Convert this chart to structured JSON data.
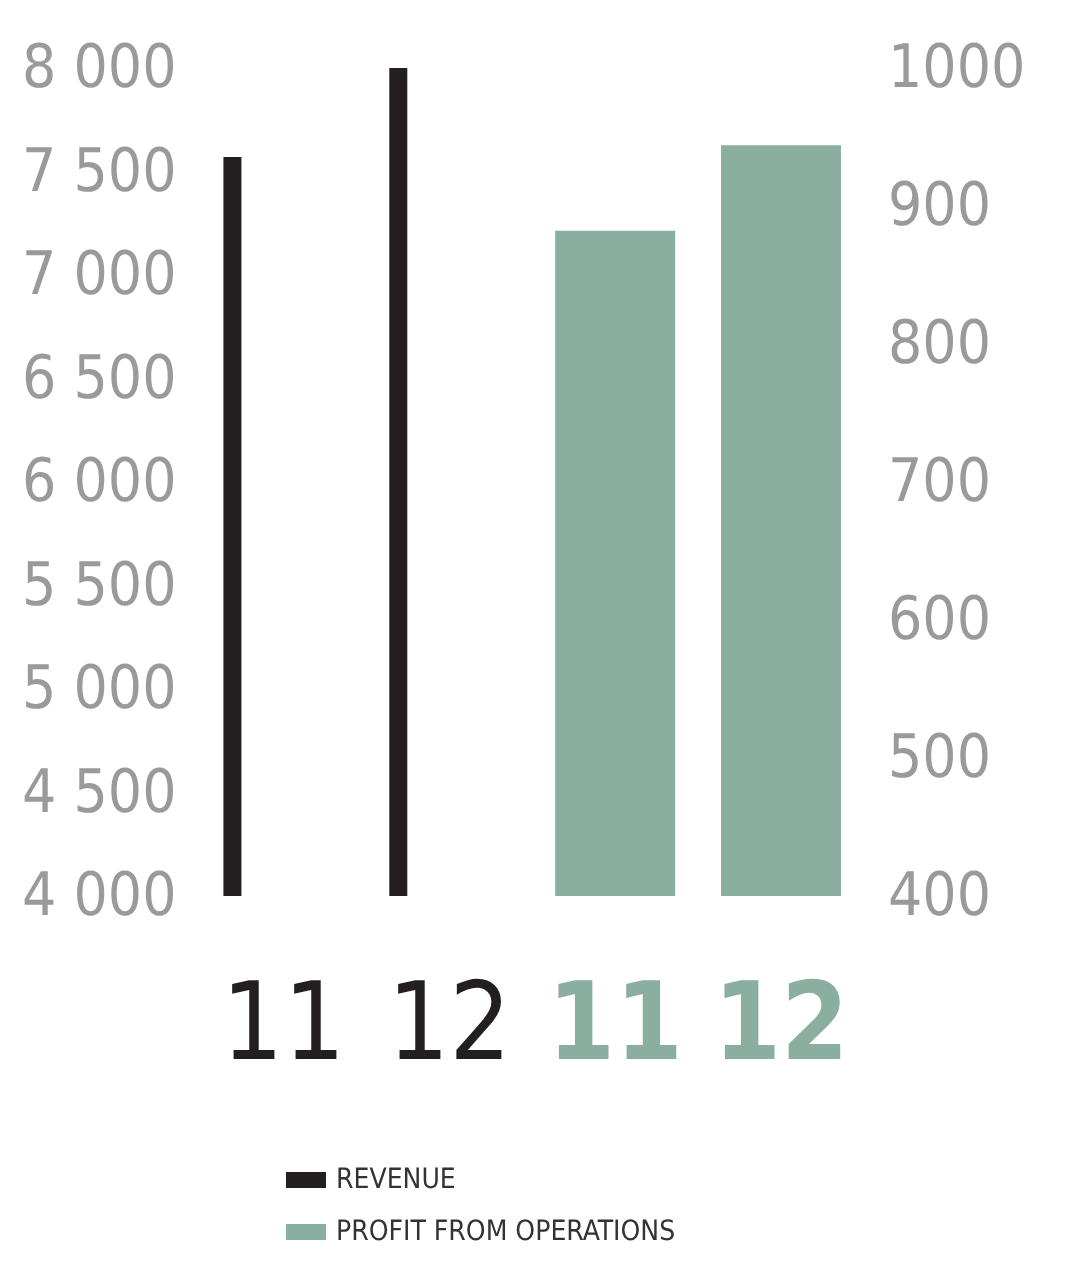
{
  "chart_data": {
    "type": "bar",
    "categories": [
      "11",
      "12",
      "11",
      "12"
    ],
    "series": [
      {
        "name": "REVENUE",
        "color": "#231f20",
        "values": [
          7570,
          8000,
          null,
          null
        ]
      },
      {
        "name": "PROFIT FROM OPERATIONS",
        "color": "#8aaea0",
        "axis": "y2",
        "values": [
          null,
          null,
          882,
          944
        ]
      }
    ],
    "ylim": [
      4000,
      8000
    ],
    "yticks": [
      {
        "value": 4000,
        "label": "4 000"
      },
      {
        "value": 4500,
        "label": "4 500"
      },
      {
        "value": 5000,
        "label": "5 000"
      },
      {
        "value": 5500,
        "label": "5 500"
      },
      {
        "value": 6000,
        "label": "6 000"
      },
      {
        "value": 6500,
        "label": "6 500"
      },
      {
        "value": 7000,
        "label": "7 000"
      },
      {
        "value": 7500,
        "label": "7 500"
      },
      {
        "value": 8000,
        "label": "8 000"
      }
    ],
    "y2lim": [
      400,
      1000
    ],
    "y2ticks": [
      400,
      500,
      600,
      700,
      800,
      900,
      1000
    ],
    "grid": false,
    "legend": "bottom"
  }
}
